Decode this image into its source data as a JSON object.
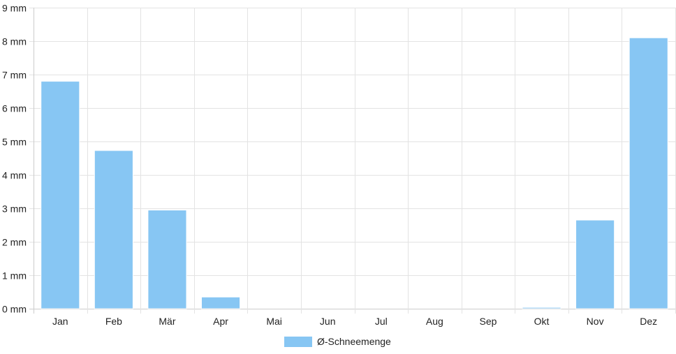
{
  "chart_data": {
    "type": "bar",
    "categories": [
      "Jan",
      "Feb",
      "Mär",
      "Apr",
      "Mai",
      "Jun",
      "Jul",
      "Aug",
      "Sep",
      "Okt",
      "Nov",
      "Dez"
    ],
    "series": [
      {
        "name": "Ø-Schneemenge",
        "values": [
          6.8,
          4.73,
          2.95,
          0.35,
          0,
          0,
          0,
          0,
          0,
          0.04,
          2.65,
          8.1
        ],
        "color": "#87c6f3",
        "border_color": "#ffffff"
      }
    ],
    "y_ticks": [
      "0 mm",
      "1 mm",
      "2 mm",
      "3 mm",
      "4 mm",
      "5 mm",
      "6 mm",
      "7 mm",
      "8 mm",
      "9 mm"
    ],
    "ylim": [
      0,
      9
    ],
    "y_unit": "mm",
    "grid": true,
    "legend_position": "bottom",
    "colors": {
      "grid": "#e3e3e3",
      "axis": "#cccccc",
      "text": "#222222"
    }
  }
}
